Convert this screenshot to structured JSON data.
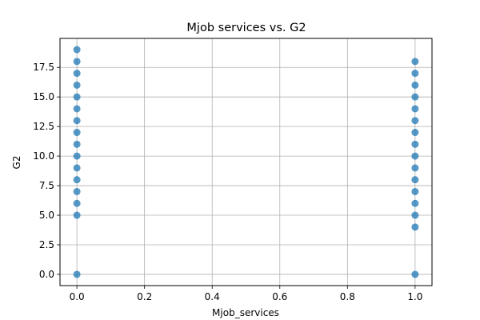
{
  "chart_data": {
    "type": "scatter",
    "title": "Mjob services vs. G2",
    "xlabel": "Mjob_services",
    "ylabel": "G2",
    "xlim": [
      -0.05,
      1.05
    ],
    "ylim": [
      -0.95,
      19.95
    ],
    "xticks": [
      0.0,
      0.2,
      0.4,
      0.6,
      0.8,
      1.0
    ],
    "xtick_labels": [
      "0.0",
      "0.2",
      "0.4",
      "0.6",
      "0.8",
      "1.0"
    ],
    "yticks": [
      0.0,
      2.5,
      5.0,
      7.5,
      10.0,
      12.5,
      15.0,
      17.5
    ],
    "ytick_labels": [
      "0.0",
      "2.5",
      "5.0",
      "7.5",
      "10.0",
      "12.5",
      "15.0",
      "17.5"
    ],
    "grid": true,
    "marker_color": "#1f77b4",
    "series": [
      {
        "x": [
          0,
          0,
          0,
          0,
          0,
          0,
          0,
          0,
          0,
          0,
          0,
          0,
          0,
          0,
          0,
          0
        ],
        "y": [
          0,
          5,
          6,
          7,
          8,
          9,
          10,
          11,
          12,
          13,
          14,
          15,
          16,
          17,
          18,
          19
        ]
      },
      {
        "x": [
          1,
          1,
          1,
          1,
          1,
          1,
          1,
          1,
          1,
          1,
          1,
          1,
          1,
          1,
          1,
          1
        ],
        "y": [
          0,
          4,
          5,
          6,
          7,
          8,
          9,
          10,
          11,
          12,
          13,
          14,
          15,
          16,
          17,
          18
        ]
      }
    ]
  }
}
